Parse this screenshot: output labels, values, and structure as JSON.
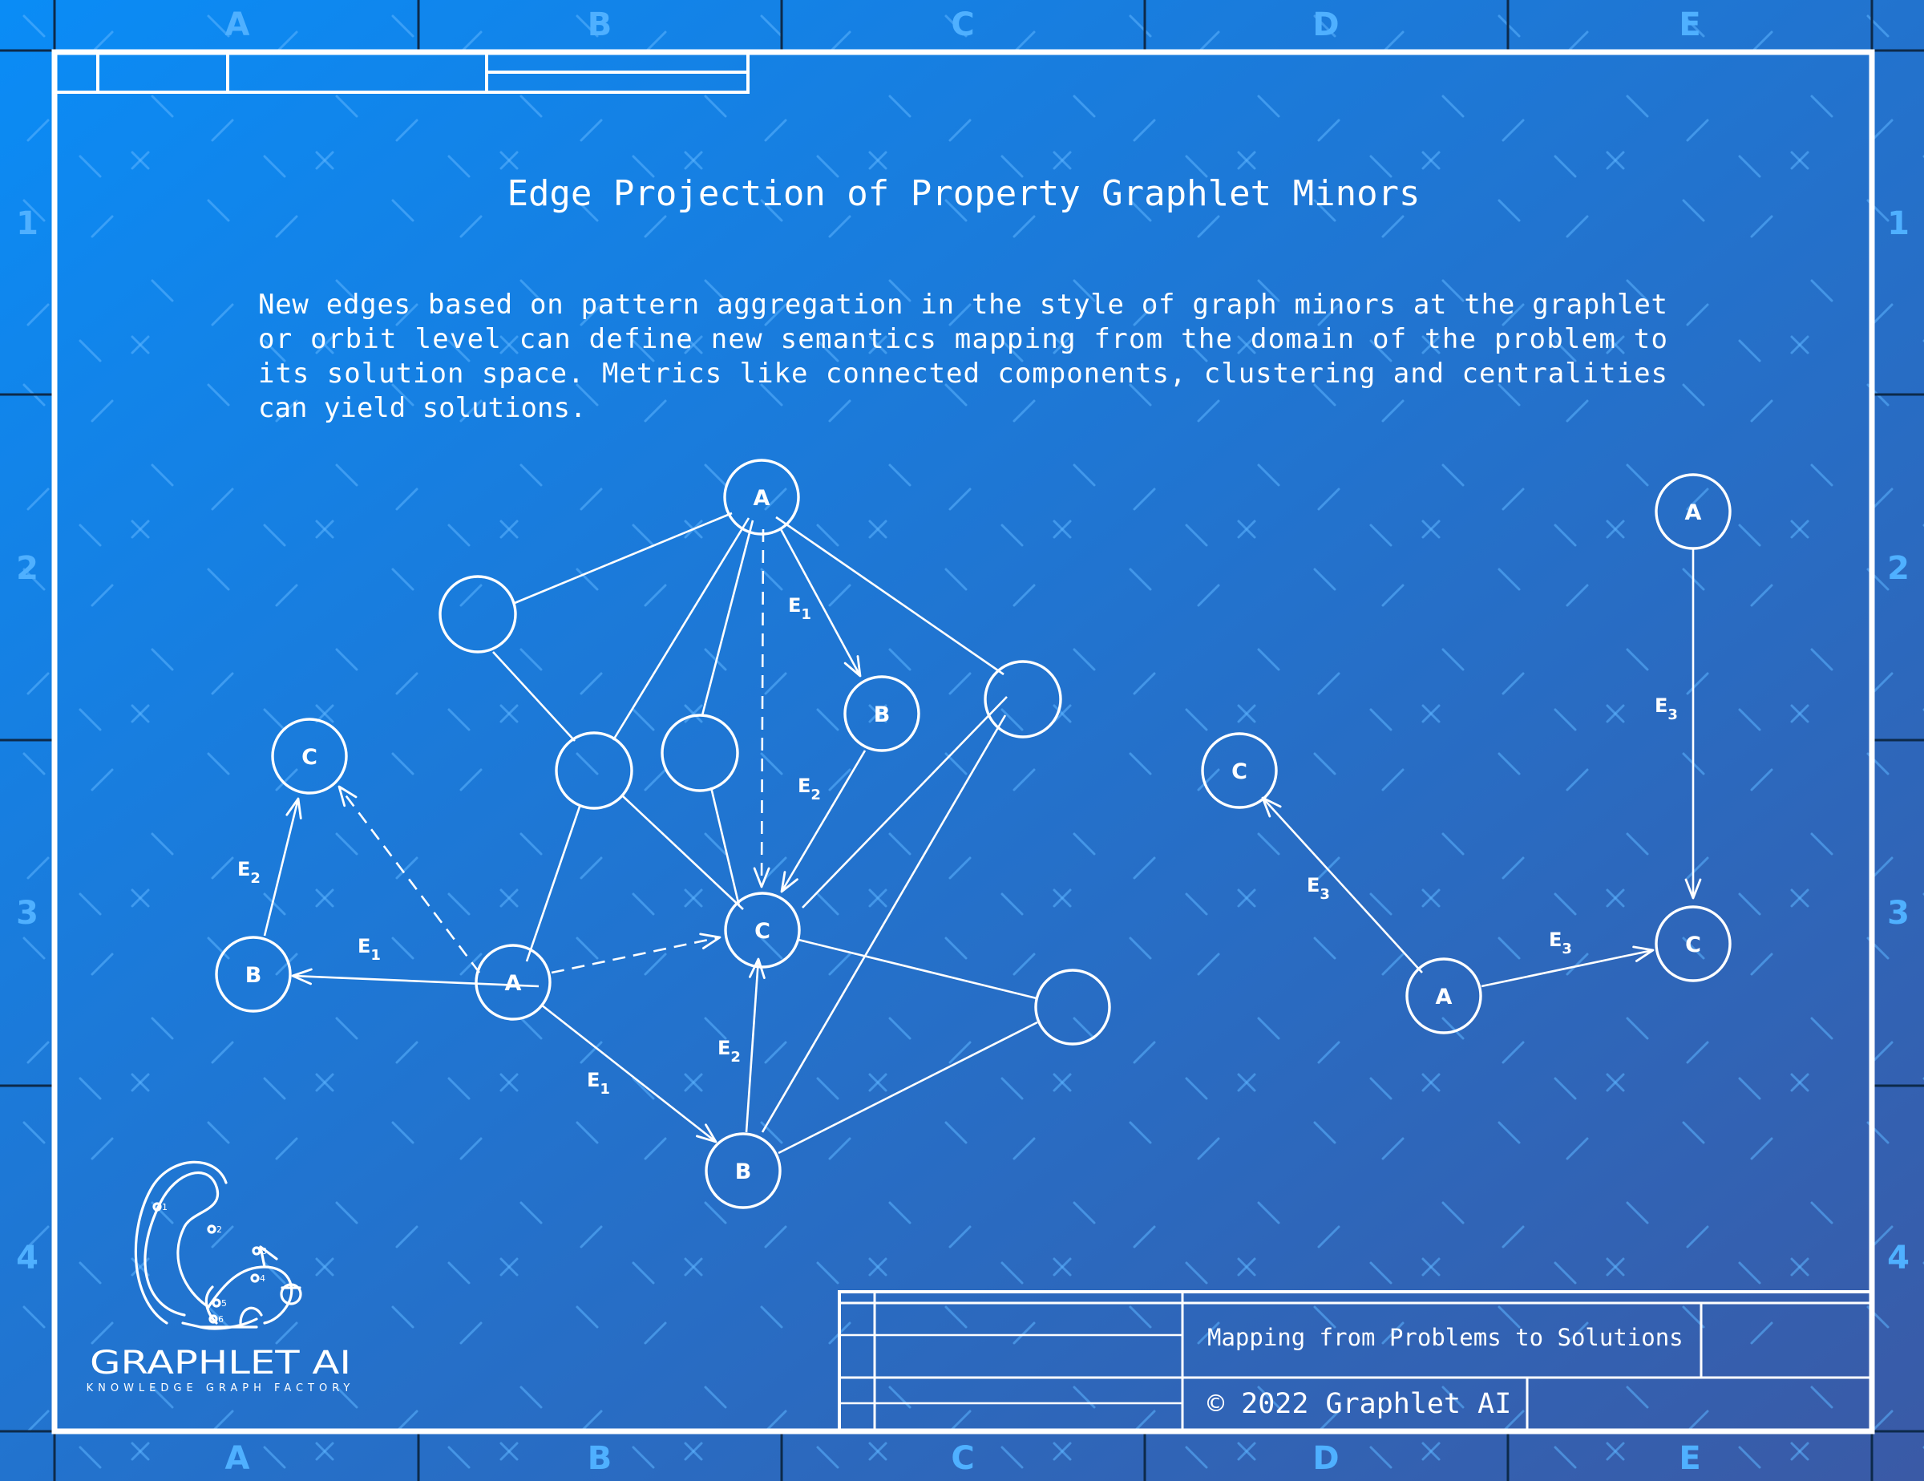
{
  "title": "Edge Projection of Property Graphlet Minors",
  "description": [
    "New edges based on pattern aggregation in the style of graph minors at the graphlet",
    "or orbit level can define new semantics mapping from the domain of the problem to",
    "its solution space. Metrics like connected components, clustering and centralities",
    "can yield solutions."
  ],
  "grid": {
    "columns": [
      "A",
      "B",
      "C",
      "D",
      "E"
    ],
    "rows": [
      "1",
      "2",
      "3",
      "4"
    ]
  },
  "title_block": {
    "caption": "Mapping from Problems to Solutions",
    "copyright": "© 2022 Graphlet AI"
  },
  "logo": {
    "name": "GRAPHLET AI",
    "tagline": "KNOWLEDGE GRAPH FACTORY",
    "badge_numbers": [
      "1",
      "2",
      "3",
      "4",
      "5",
      "6"
    ]
  },
  "colors": {
    "background_start": "#0a8cf6",
    "background_end": "#3a5aa6",
    "line": "#ffffff",
    "ruler": "#4fb0ff"
  },
  "node_labels": {
    "a": "A",
    "b": "B",
    "c": "C"
  },
  "edge_labels": {
    "e1": "E",
    "e2": "E",
    "e3": "E",
    "sub1": "1",
    "sub2": "2",
    "sub3": "3"
  }
}
